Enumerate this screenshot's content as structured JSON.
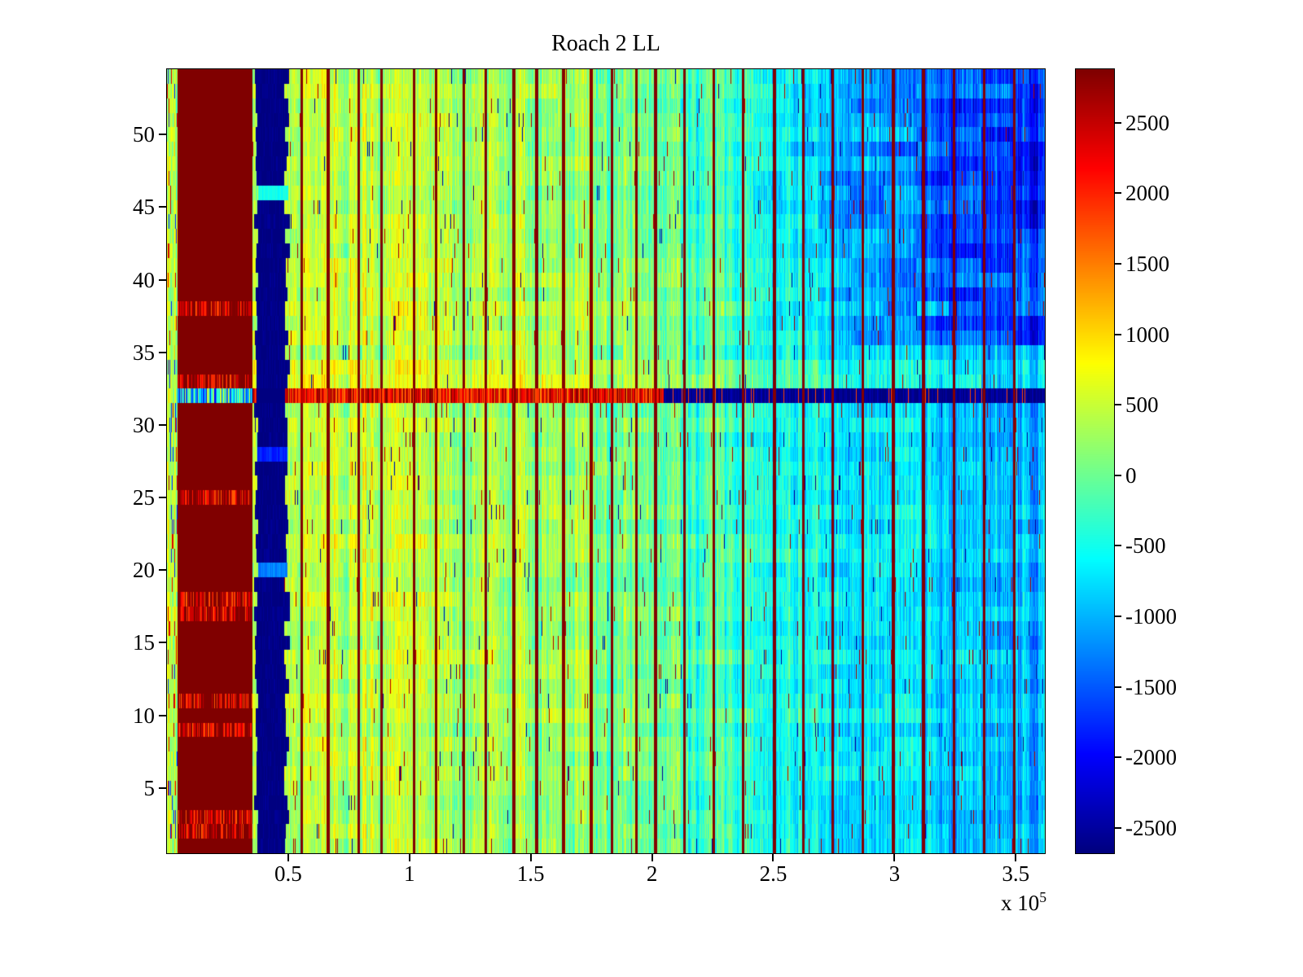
{
  "window": {
    "background": "#ffffff"
  },
  "chart_data": {
    "type": "heatmap",
    "title": "Roach 2 LL",
    "colormap": "jet",
    "clim": [
      -2680,
      2880
    ],
    "x_range": [
      0,
      362000
    ],
    "x_ticks": [
      50000,
      100000,
      150000,
      200000,
      250000,
      300000,
      350000
    ],
    "x_tick_labels": [
      "0.5",
      "1",
      "1.5",
      "2",
      "2.5",
      "3",
      "3.5"
    ],
    "x_exponent_label": {
      "prefix": "x 10",
      "exponent": "5"
    },
    "y_range": [
      0.5,
      54.5
    ],
    "y_ticks": [
      5,
      10,
      15,
      20,
      25,
      30,
      35,
      40,
      45,
      50
    ],
    "y_tick_labels": [
      "5",
      "10",
      "15",
      "20",
      "25",
      "30",
      "35",
      "40",
      "45",
      "50"
    ],
    "colorbar_ticks": [
      2500,
      2000,
      1500,
      1000,
      500,
      0,
      -500,
      -1000,
      -1500,
      -2000,
      -2500
    ],
    "grid": false,
    "legend": false,
    "regions": {
      "left_edge": {
        "x_end": 4500,
        "base": 250
      },
      "high_band": {
        "x": [
          4500,
          35200
        ],
        "value": 2880,
        "speckle_rows": [
          2,
          3,
          9,
          11,
          17,
          18,
          25,
          33,
          38
        ]
      },
      "low_band": {
        "x": [
          36800,
          48200
        ],
        "value": -2680,
        "edge_jitter": 2600,
        "breaks": [
          {
            "row": 46,
            "value": -500
          },
          {
            "row": 20,
            "value": -1300
          },
          {
            "row": 28,
            "value": -1800
          }
        ]
      },
      "main_base_points": {
        "x": [
          49000,
          100000,
          160000,
          220000,
          280000,
          362000
        ],
        "v": [
          540,
          440,
          260,
          -140,
          -640,
          -950
        ]
      },
      "warm_rows": [
        33,
        34,
        38
      ],
      "upper_right": {
        "row_min": 36,
        "x_start": 240000,
        "ramp": 80000,
        "extra": -700
      },
      "anomaly_row": {
        "row": 32,
        "split_x": 205000,
        "left_value": 2150,
        "right_value": -2600,
        "band_value": -700
      },
      "red_lines_x": [
        55500,
        66500,
        79000,
        88500,
        102000,
        111000,
        122500,
        131500,
        143000,
        152500,
        163500,
        175000,
        183500,
        193500,
        201500,
        213500,
        225500,
        237500,
        250500,
        262500,
        274500,
        287000,
        299500,
        312000,
        324500,
        337000,
        349500
      ]
    },
    "noise": {
      "seed": 7,
      "col_amp": 300,
      "col2_amp": 240,
      "cell_amp": 240,
      "row_amp": 100,
      "patch_amp": 150,
      "spike_prob": 0.012
    }
  }
}
